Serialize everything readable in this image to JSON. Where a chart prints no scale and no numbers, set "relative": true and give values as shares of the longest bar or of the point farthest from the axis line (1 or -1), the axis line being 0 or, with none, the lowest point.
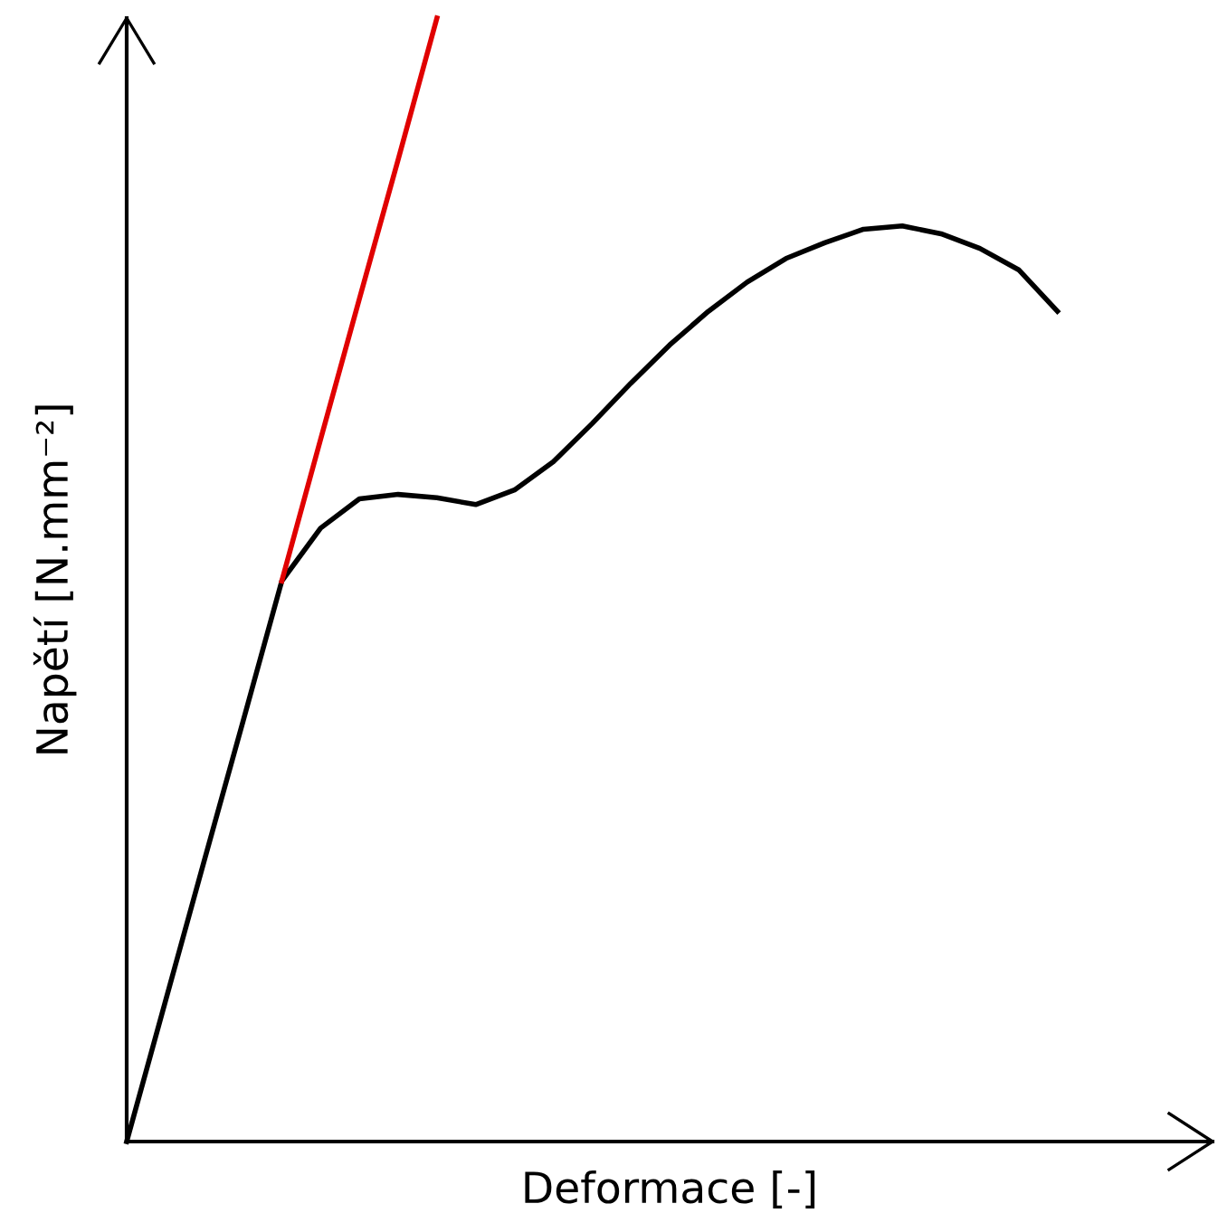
{
  "chart_data": {
    "type": "line",
    "relative": true,
    "xlabel": "Deformace [-]",
    "ylabel": "Napětí [N.mm⁻²]",
    "categories": [
      null,
      null,
      null,
      null,
      null,
      null,
      null,
      null,
      null,
      null,
      null,
      null,
      null,
      null,
      null,
      null,
      null,
      null,
      null,
      null,
      null,
      null,
      null,
      null,
      null
    ],
    "series": [
      {
        "color": "#000000",
        "values": [
          0,
          0.125,
          0.25,
          0.374,
          0.499,
          0.546,
          0.572,
          0.576,
          0.573,
          0.567,
          0.58,
          0.605,
          0.639,
          0.675,
          0.709,
          0.739,
          0.765,
          0.786,
          0.8,
          0.812,
          0.815,
          0.808,
          0.795,
          0.776,
          0.739
        ]
      },
      {
        "color": "#e00000",
        "values": [
          null,
          null,
          null,
          null,
          0.499,
          0.625,
          0.75,
          0.874,
          1.0,
          null,
          null,
          null,
          null,
          null,
          null,
          null,
          null,
          null,
          null,
          null,
          null,
          null,
          null,
          null,
          null
        ]
      }
    ],
    "legend": false,
    "grid": false
  }
}
